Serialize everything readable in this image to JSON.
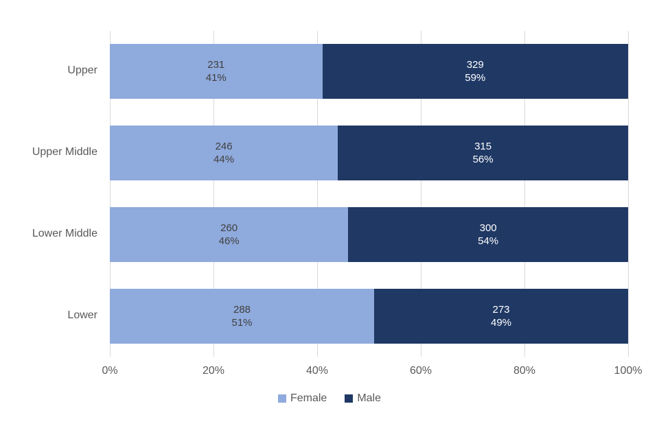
{
  "chart_data": {
    "type": "bar",
    "orientation": "horizontal",
    "stacked": true,
    "stacked_unit": "percent",
    "title": "",
    "categories": [
      "Upper",
      "Upper Middle",
      "Lower Middle",
      "Lower"
    ],
    "series": [
      {
        "name": "Female",
        "color": "#8FAADC",
        "label_color": "#404040",
        "counts": [
          231,
          246,
          260,
          288
        ],
        "percents": [
          41,
          44,
          46,
          51
        ],
        "percent_labels": [
          "41%",
          "44%",
          "46%",
          "51%"
        ]
      },
      {
        "name": "Male",
        "color": "#1F3864",
        "label_color": "#FFFFFF",
        "counts": [
          329,
          315,
          300,
          273
        ],
        "percents": [
          59,
          56,
          54,
          49
        ],
        "percent_labels": [
          "59%",
          "56%",
          "54%",
          "49%"
        ]
      }
    ],
    "x_ticks": [
      "0%",
      "20%",
      "40%",
      "60%",
      "80%",
      "100%"
    ],
    "xlim": [
      0,
      100
    ],
    "grid": "vertical-only",
    "gridline_color": "#D9D9D9",
    "axis_text_color": "#595959",
    "legend_position": "bottom"
  }
}
